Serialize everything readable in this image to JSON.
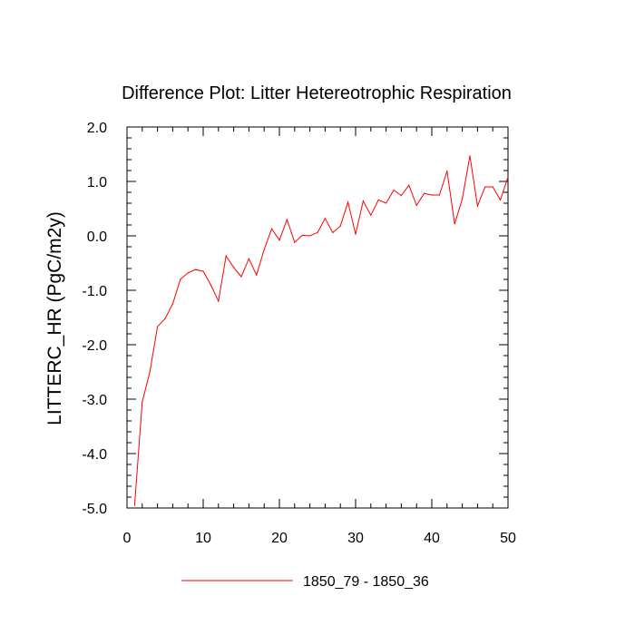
{
  "chart_data": {
    "type": "line",
    "title": "Difference Plot: Litter Hetereotrophic Respiration",
    "xlabel": "",
    "ylabel": "LITTERC_HR  (PgC/m2y)",
    "xlim": [
      0,
      50
    ],
    "ylim": [
      -5.0,
      2.0
    ],
    "x_ticks": [
      0,
      10,
      20,
      30,
      40,
      50
    ],
    "x_tick_labels": [
      "0",
      "10",
      "20",
      "30",
      "40",
      "50"
    ],
    "y_ticks": [
      -5.0,
      -4.0,
      -3.0,
      -2.0,
      -1.0,
      0.0,
      1.0,
      2.0
    ],
    "y_tick_labels": [
      "-5.0",
      "-4.0",
      "-3.0",
      "-2.0",
      "-1.0",
      "0.0",
      "1.0",
      "2.0"
    ],
    "grid": false,
    "legend_position": "bottom-center",
    "series": [
      {
        "name": "1850_79 - 1850_36",
        "color": "#ff0000",
        "x": [
          1,
          2,
          3,
          4,
          5,
          6,
          7,
          8,
          9,
          10,
          11,
          12,
          13,
          14,
          15,
          16,
          17,
          18,
          19,
          20,
          21,
          22,
          23,
          24,
          25,
          26,
          27,
          28,
          29,
          30,
          31,
          32,
          33,
          34,
          35,
          36,
          37,
          38,
          39,
          40,
          41,
          42,
          43,
          44,
          45,
          46,
          47,
          48,
          49,
          50
        ],
        "values": [
          -4.95,
          -3.05,
          -2.5,
          -1.67,
          -1.52,
          -1.25,
          -0.8,
          -0.68,
          -0.62,
          -0.65,
          -0.9,
          -1.2,
          -0.37,
          -0.58,
          -0.75,
          -0.42,
          -0.72,
          -0.25,
          0.13,
          -0.08,
          0.3,
          -0.12,
          0.01,
          0.0,
          0.06,
          0.32,
          0.06,
          0.18,
          0.62,
          0.03,
          0.64,
          0.38,
          0.66,
          0.6,
          0.84,
          0.74,
          0.93,
          0.56,
          0.78,
          0.75,
          0.75,
          1.19,
          0.22,
          0.68,
          1.47,
          0.55,
          0.9,
          0.9,
          0.66,
          1.08
        ]
      }
    ]
  }
}
